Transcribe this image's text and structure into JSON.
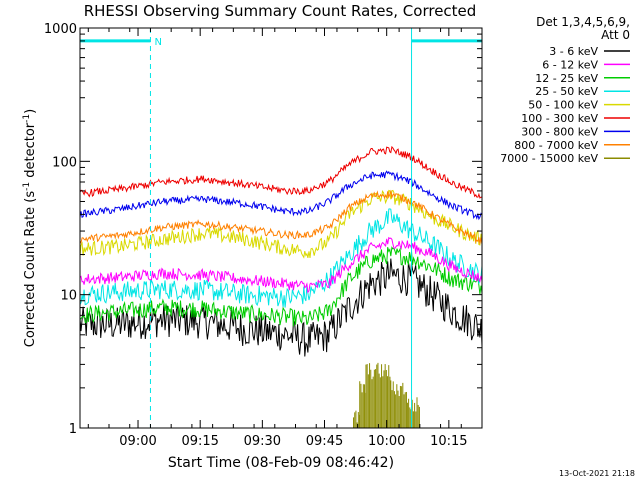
{
  "chart_data": {
    "type": "line",
    "title": "RHESSI Observing Summary Count Rates, Corrected",
    "xlabel": "Start Time (08-Feb-09 08:46:42)",
    "ylabel": "Corrected Count Rate (s",
    "ylabel_sup1": "-1",
    "ylabel_mid": " detector",
    "ylabel_sup2": "-1",
    "ylabel_end": ")",
    "y_scale": "log",
    "ylim": [
      1,
      1000
    ],
    "y_ticks": [
      {
        "value": 1,
        "label": "1"
      },
      {
        "value": 10,
        "label": "10"
      },
      {
        "value": 100,
        "label": "100"
      },
      {
        "value": 1000,
        "label": "1000"
      }
    ],
    "xlim_minutes": [
      0,
      97
    ],
    "x_ticks": [
      {
        "minute": 14,
        "label": "09:00"
      },
      {
        "minute": 29,
        "label": "09:15"
      },
      {
        "minute": 44,
        "label": "09:30"
      },
      {
        "minute": 59,
        "label": "09:45"
      },
      {
        "minute": 74,
        "label": "10:00"
      },
      {
        "minute": 89,
        "label": "10:15"
      }
    ],
    "legend": {
      "placement": "outside-right",
      "header": [
        "Det 1,3,4,5,6,9,",
        "Att 0"
      ],
      "entries": [
        {
          "label": "3 - 6 keV",
          "color": "#000000"
        },
        {
          "label": "6 - 12 keV",
          "color": "#ff00ff"
        },
        {
          "label": "12 - 25 keV",
          "color": "#00cc00"
        },
        {
          "label": "25 - 50 keV",
          "color": "#00e5e5"
        },
        {
          "label": "50 - 100 keV",
          "color": "#d9d900"
        },
        {
          "label": "100 - 300 keV",
          "color": "#ee0000"
        },
        {
          "label": "300 - 800 keV",
          "color": "#0000ee"
        },
        {
          "label": "800 - 7000 keV",
          "color": "#ff8000"
        },
        {
          "label": "7000 - 15000 keV",
          "color": "#8b8b00"
        }
      ]
    },
    "series": [
      {
        "name": "3 - 6 keV",
        "color": "#000000",
        "noise": 0.12,
        "x": [
          0,
          10,
          20,
          30,
          40,
          50,
          55,
          60,
          65,
          70,
          75,
          80,
          85,
          90,
          95,
          97
        ],
        "y": [
          6,
          6,
          6.5,
          6.3,
          5.5,
          5,
          4.5,
          5,
          8,
          12,
          14,
          13,
          10,
          7.5,
          6,
          5.5
        ]
      },
      {
        "name": "6 - 12 keV",
        "color": "#ff00ff",
        "noise": 0.04,
        "x": [
          0,
          10,
          20,
          30,
          40,
          50,
          55,
          60,
          65,
          70,
          75,
          80,
          85,
          90,
          95,
          97
        ],
        "y": [
          13,
          13.5,
          14.5,
          14,
          13,
          12,
          11.5,
          12,
          17,
          22,
          25,
          23,
          20,
          16,
          14,
          13
        ]
      },
      {
        "name": "12 - 25 keV",
        "color": "#00cc00",
        "noise": 0.06,
        "x": [
          0,
          10,
          20,
          30,
          40,
          50,
          55,
          60,
          65,
          70,
          75,
          80,
          85,
          90,
          95,
          97
        ],
        "y": [
          7,
          7.5,
          8,
          7.8,
          7.2,
          6.8,
          6.5,
          7.5,
          13,
          18,
          20,
          19,
          16,
          13,
          12,
          11.5
        ]
      },
      {
        "name": "25 - 50 keV",
        "color": "#00e5e5",
        "noise": 0.07,
        "x": [
          0,
          10,
          20,
          30,
          40,
          50,
          55,
          60,
          65,
          70,
          75,
          80,
          85,
          90,
          95,
          97
        ],
        "y": [
          10,
          10.5,
          11,
          10.8,
          10,
          9.5,
          10,
          13,
          20,
          30,
          38,
          30,
          24,
          18,
          15,
          14
        ]
      },
      {
        "name": "50 - 100 keV",
        "color": "#d9d900",
        "noise": 0.05,
        "x": [
          0,
          10,
          20,
          30,
          40,
          50,
          55,
          60,
          65,
          70,
          75,
          80,
          85,
          90,
          95,
          97
        ],
        "y": [
          22,
          23,
          26,
          29,
          26,
          22,
          21,
          25,
          40,
          52,
          55,
          48,
          38,
          32,
          27,
          26
        ]
      },
      {
        "name": "100 - 300 keV",
        "color": "#ee0000",
        "noise": 0.025,
        "x": [
          0,
          10,
          20,
          30,
          40,
          50,
          55,
          60,
          65,
          70,
          75,
          80,
          85,
          90,
          95,
          97
        ],
        "y": [
          57,
          62,
          70,
          74,
          67,
          60,
          60,
          70,
          95,
          118,
          122,
          108,
          85,
          68,
          58,
          55
        ]
      },
      {
        "name": "300 - 800 keV",
        "color": "#0000ee",
        "noise": 0.025,
        "x": [
          0,
          10,
          20,
          30,
          40,
          50,
          55,
          60,
          65,
          70,
          75,
          80,
          85,
          90,
          95,
          97
        ],
        "y": [
          40,
          44,
          50,
          52,
          48,
          42,
          42,
          50,
          66,
          78,
          80,
          70,
          56,
          46,
          40,
          38
        ]
      },
      {
        "name": "800 - 7000 keV",
        "color": "#ff8000",
        "noise": 0.025,
        "x": [
          0,
          10,
          20,
          30,
          40,
          50,
          55,
          60,
          65,
          70,
          75,
          80,
          85,
          90,
          95,
          97
        ],
        "y": [
          26,
          28,
          32,
          34,
          31,
          28,
          28,
          32,
          45,
          55,
          57,
          50,
          40,
          32,
          27,
          25
        ]
      }
    ],
    "step_series": [
      {
        "name": "7000 - 15000 keV",
        "color": "#8b8b00",
        "x": [
          66,
          67.5,
          69,
          75,
          79,
          82
        ],
        "y": [
          1.2,
          2,
          2.7,
          2,
          1.5,
          1.1
        ]
      }
    ],
    "annotations": {
      "attenuator_bar_label": "N",
      "vertical_lines_minutes": [
        0,
        17,
        80,
        97
      ],
      "attenuator_bars_minutes": [
        [
          0,
          17
        ],
        [
          80,
          97
        ]
      ],
      "attenuator_bar_level": 800
    },
    "grid": false
  },
  "footer": {
    "timestamp": "13-Oct-2021 21:18"
  }
}
